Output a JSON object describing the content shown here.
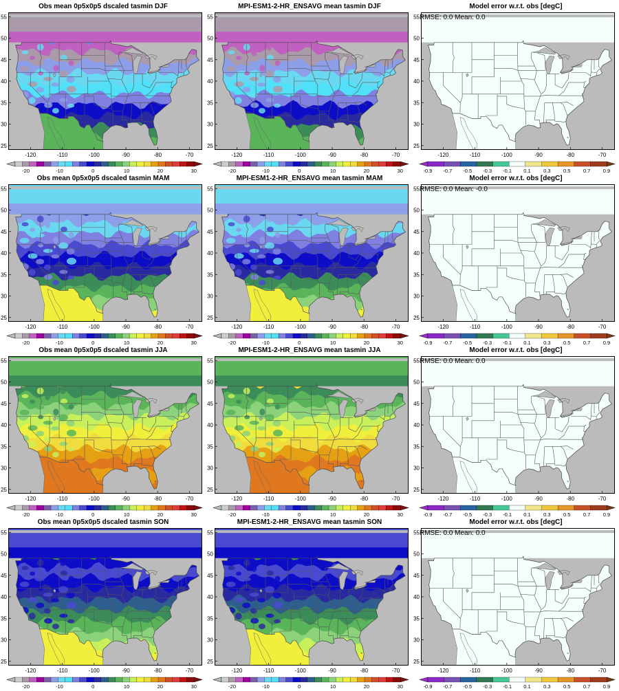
{
  "lat_ticks": [
    "25",
    "30",
    "35",
    "40",
    "45",
    "50",
    "55"
  ],
  "lon_ticks": [
    "-120",
    "-110",
    "-100",
    "-90",
    "-80",
    "-70"
  ],
  "colorbar_temp": {
    "labels": [
      "-20",
      "-10",
      "0",
      "10",
      "20",
      "30"
    ],
    "colors": [
      "#cccccc",
      "#aa9aaa",
      "#c060c0",
      "#a000a0",
      "#7a60a8",
      "#8c9fe8",
      "#6ad8f0",
      "#50e0f8",
      "#8080e0",
      "#4a4ad0",
      "#0d0dc8",
      "#2a2aa0",
      "#2d5e8e",
      "#3c8c5a",
      "#5ab45a",
      "#8cd27a",
      "#c8f05a",
      "#f0f03c",
      "#f0dc3c",
      "#e6a014",
      "#e07820",
      "#d25028",
      "#e03c3c",
      "#c01414",
      "#8c0a0a"
    ],
    "under_color": "#bbbbbb",
    "over_color": "#7d1010"
  },
  "colorbar_error": {
    "labels": [
      "-0.9",
      "-0.7",
      "-0.5",
      "-0.3",
      "-0.1",
      "0.1",
      "0.3",
      "0.5",
      "0.7",
      "0.9"
    ],
    "colors": [
      "#8c28c8",
      "#7850b4",
      "#2864a0",
      "#327850",
      "#46c896",
      "#f5fffa",
      "#f0e68c",
      "#f0c83c",
      "#e69628",
      "#c85028",
      "#a03c1e"
    ],
    "under_color": "#9b2dc8",
    "over_color": "#7a3a14"
  },
  "rows": [
    {
      "season": "DJF",
      "obs_title": "Obs mean 0p5x0p5 dscaled tasmin DJF",
      "model_title": "MPI-ESM1-2-HR_ENSAVG mean tasmin DJF",
      "err_title": "Model error w.r.t. obs [degC]",
      "rmse": "RMSE: 0.0",
      "mean": "Mean: 0.0",
      "bands": [
        "#c060c0",
        "#aa9aaa",
        "#8c9fe8",
        "#6ad8f0",
        "#50e0f8",
        "#8080e0",
        "#0d0dc8",
        "#2a2aa0",
        "#3c8c5a",
        "#5ab45a"
      ]
    },
    {
      "season": "MAM",
      "obs_title": "Obs mean 0p5x0p5 dscaled tasmin MAM",
      "model_title": "MPI-ESM1-2-HR_ENSAVG mean tasmin MAM",
      "err_title": "Model error w.r.t. obs [degC]",
      "rmse": "RMSE: 0.0",
      "mean": "Mean: -0.0",
      "bands": [
        "#8c9fe8",
        "#6ad8f0",
        "#8080e0",
        "#4a4ad0",
        "#0d0dc8",
        "#2a2aa0",
        "#3c8c5a",
        "#5ab45a",
        "#8cd27a",
        "#f0f03c"
      ]
    },
    {
      "season": "JJA",
      "obs_title": "Obs mean 0p5x0p5 dscaled tasmin JJA",
      "model_title": "MPI-ESM1-2-HR_ENSAVG mean tasmin JJA",
      "err_title": "Model error w.r.t. obs [degC]",
      "rmse": "RMSE: 0.0",
      "mean": "Mean: 0.0",
      "bands": [
        "#3c8c5a",
        "#5ab45a",
        "#8cd27a",
        "#c8f05a",
        "#f0f03c",
        "#f0dc3c",
        "#e6a014",
        "#e07820",
        "#e6a014",
        "#e07820"
      ]
    },
    {
      "season": "SON",
      "obs_title": "Obs mean 0p5x0p5 dscaled tasmin SON",
      "model_title": "MPI-ESM1-2-HR_ENSAVG mean tasmin SON",
      "err_title": "Model error w.r.t. obs [degC]",
      "rmse": "RMSE: 0.0",
      "mean": "Mean: 0.0",
      "bands": [
        "#0d0dc8",
        "#4a4ad0",
        "#0d0dc8",
        "#2a2aa0",
        "#2d5e8e",
        "#3c8c5a",
        "#5ab45a",
        "#8cd27a",
        "#c8f05a",
        "#f0f03c"
      ]
    }
  ]
}
